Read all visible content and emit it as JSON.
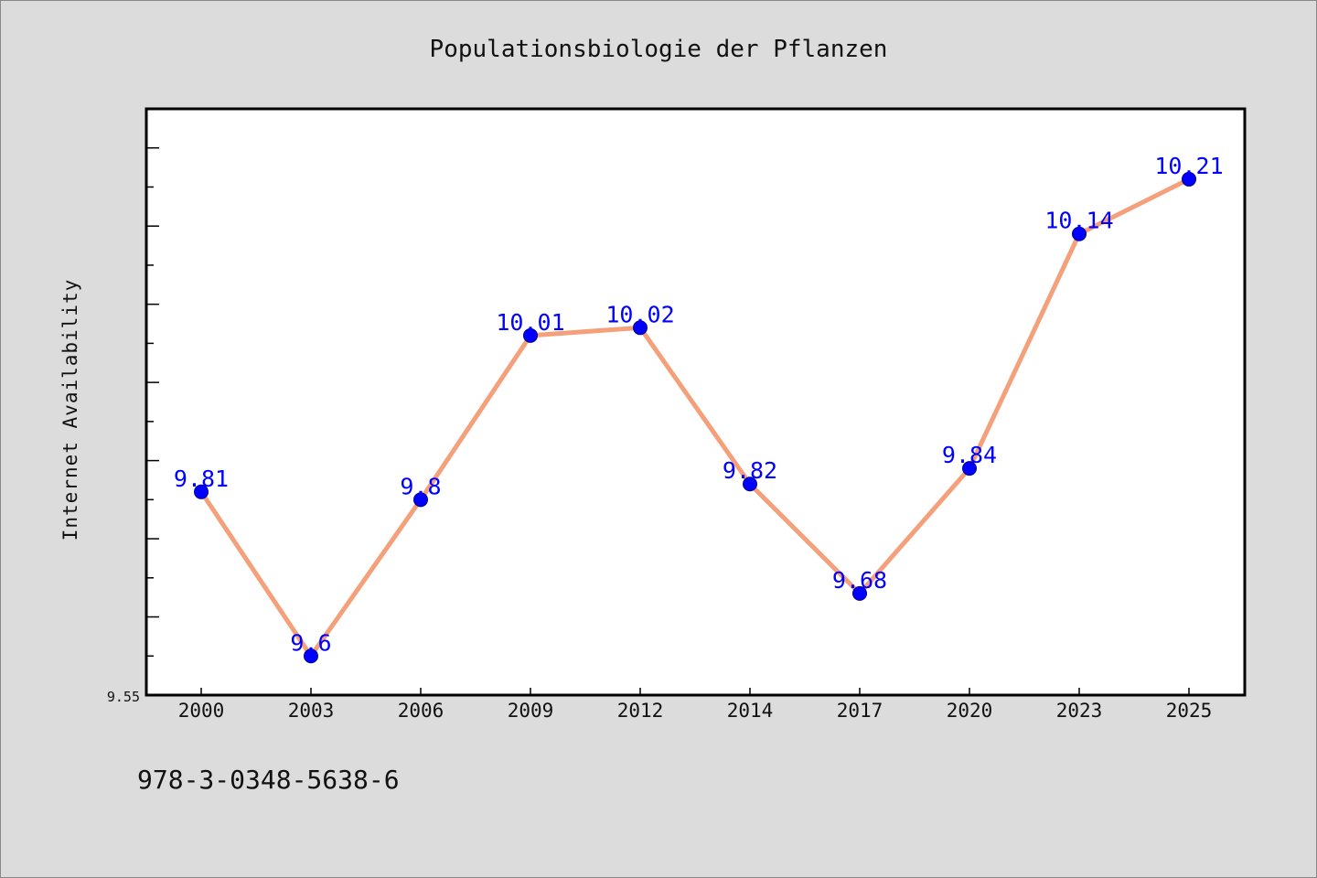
{
  "chart_data": {
    "type": "line",
    "title": "Populationsbiologie der Pflanzen",
    "xlabel": "",
    "ylabel": "Internet Availability",
    "categories": [
      "2000",
      "2003",
      "2006",
      "2009",
      "2012",
      "2014",
      "2017",
      "2020",
      "2023",
      "2025"
    ],
    "series": [
      {
        "values": [
          9.81,
          9.6,
          9.8,
          10.01,
          10.02,
          9.82,
          9.68,
          9.84,
          10.14,
          10.21
        ],
        "labels": [
          "9.81",
          "9.6",
          "9.8",
          "10.01",
          "10.02",
          "9.82",
          "9.68",
          "9.84",
          "10.14",
          "10.21"
        ],
        "line_color": "#f4a07a",
        "marker_color": "#0000ff"
      }
    ],
    "y_tick_label": "9.55",
    "ylim": [
      9.55,
      10.3
    ],
    "grid": false,
    "legend": "none"
  },
  "footer": {
    "isbn": "978-3-0348-5638-6"
  }
}
